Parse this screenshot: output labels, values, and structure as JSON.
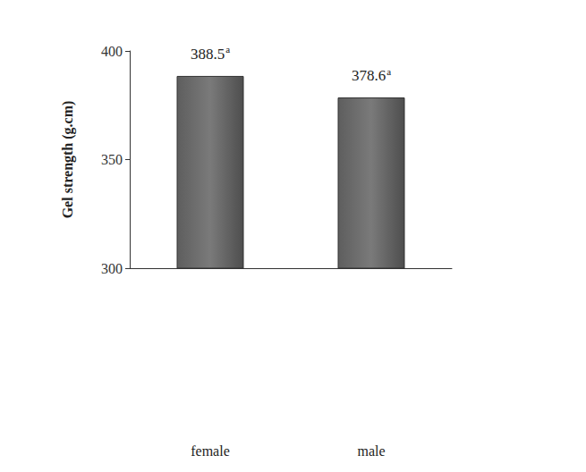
{
  "chart_data": {
    "type": "bar",
    "categories": [
      "female",
      "male"
    ],
    "values": [
      388.5,
      378.6
    ],
    "value_labels": [
      "388.5a",
      "378.6a"
    ],
    "y_label": "Gel strength (g.cm)",
    "color": "#7a7a7a",
    "ylim": [
      300,
      400
    ],
    "yticks": [
      300,
      350,
      400
    ],
    "grid": false,
    "data_labels": true
  }
}
